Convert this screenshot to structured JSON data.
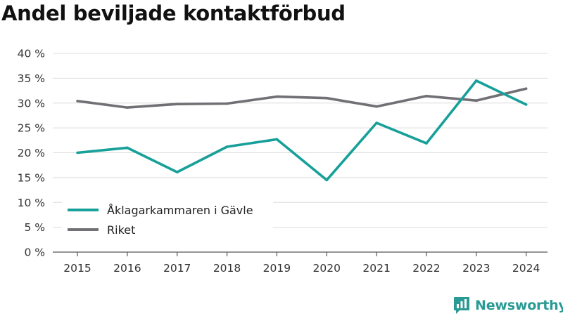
{
  "title": "Andel beviljade kontaktförbud",
  "brand": {
    "name": "Newsworthy",
    "icon": "bar-chart-speech-icon",
    "color": "#2a9a94"
  },
  "chart_data": {
    "type": "line",
    "title": "Andel beviljade kontaktförbud",
    "xlabel": "",
    "ylabel": "",
    "x": [
      "2015",
      "2016",
      "2017",
      "2018",
      "2019",
      "2020",
      "2021",
      "2022",
      "2023",
      "2024"
    ],
    "ylim": [
      0,
      40
    ],
    "yticks": [
      0,
      5,
      10,
      15,
      20,
      25,
      30,
      35,
      40
    ],
    "ytick_labels": [
      "0 %",
      "5 %",
      "10 %",
      "15 %",
      "20 %",
      "25 %",
      "30 %",
      "35 %",
      "40 %"
    ],
    "grid": true,
    "legend_position": "bottom-left",
    "series": [
      {
        "name": "Åklagarkammaren i Gävle",
        "color": "#17a09a",
        "values": [
          20.0,
          21.0,
          16.1,
          21.2,
          22.7,
          14.5,
          26.0,
          21.9,
          34.5,
          29.7
        ]
      },
      {
        "name": "Riket",
        "color": "#707075",
        "values": [
          30.4,
          29.1,
          29.8,
          29.9,
          31.3,
          31.0,
          29.3,
          31.4,
          30.5,
          32.9
        ]
      }
    ]
  }
}
